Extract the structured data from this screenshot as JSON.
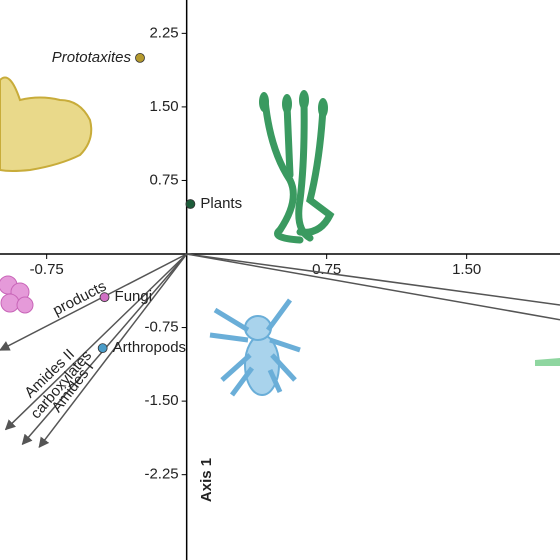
{
  "chart_data": {
    "type": "scatter",
    "y_axis_title": "Axis 1",
    "xlim": [
      -1.0,
      2.0
    ],
    "ylim": [
      -3.12,
      2.59
    ],
    "xticks": [
      -0.75,
      0.75,
      {
        "value": 1.5,
        "label": "1.50"
      }
    ],
    "yticks": [
      2.25,
      {
        "value": 1.5,
        "label": "1.50"
      },
      0.75,
      -0.75,
      {
        "value": -1.5,
        "label": "-1.50"
      },
      -2.25
    ],
    "series": [
      {
        "name": "Prototaxites",
        "color": "#b59a2e",
        "x": [
          -0.25
        ],
        "y": [
          2.0
        ]
      },
      {
        "name": "Plants",
        "color": "#1d5c3a",
        "x": [
          0.02
        ],
        "y": [
          0.51
        ]
      },
      {
        "name": "Fungi",
        "color": "#d070c4",
        "x": [
          -0.44
        ],
        "y": [
          -0.44
        ]
      },
      {
        "name": "Arthropods",
        "color": "#4a9cc8",
        "x": [
          -0.45
        ],
        "y": [
          -0.96
        ]
      }
    ],
    "vectors": [
      {
        "name": "products",
        "x": -1.0,
        "y": -0.98
      },
      {
        "name": "Amides II",
        "x": -0.97,
        "y": -1.79
      },
      {
        "name": "carboxylates",
        "x": -0.88,
        "y": -1.94
      },
      {
        "name": "Amides I",
        "x": -0.79,
        "y": -1.97
      },
      {
        "x": 2.0,
        "y": -0.67
      },
      {
        "x": 2.0,
        "y": -0.52
      }
    ]
  }
}
